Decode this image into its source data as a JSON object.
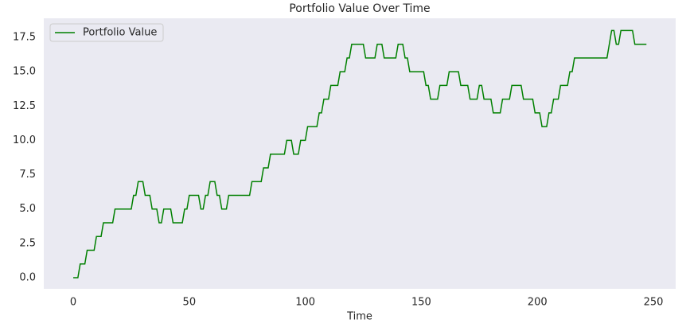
{
  "chart_data": {
    "type": "line",
    "title": "Portfolio Value Over Time",
    "xlabel": "Time",
    "x": [
      0,
      1,
      2,
      3,
      4,
      5,
      6,
      7,
      8,
      9,
      10,
      11,
      12,
      13,
      14,
      15,
      16,
      17,
      18,
      19,
      20,
      21,
      22,
      23,
      24,
      25,
      26,
      27,
      28,
      29,
      30,
      31,
      32,
      33,
      34,
      35,
      36,
      37,
      38,
      39,
      40,
      41,
      42,
      43,
      44,
      45,
      46,
      47,
      48,
      49,
      50,
      51,
      52,
      53,
      54,
      55,
      56,
      57,
      58,
      59,
      60,
      61,
      62,
      63,
      64,
      65,
      66,
      67,
      68,
      69,
      70,
      71,
      72,
      73,
      74,
      75,
      76,
      77,
      78,
      79,
      80,
      81,
      82,
      83,
      84,
      85,
      86,
      87,
      88,
      89,
      90,
      91,
      92,
      93,
      94,
      95,
      96,
      97,
      98,
      99,
      100,
      101,
      102,
      103,
      104,
      105,
      106,
      107,
      108,
      109,
      110,
      111,
      112,
      113,
      114,
      115,
      116,
      117,
      118,
      119,
      120,
      121,
      122,
      123,
      124,
      125,
      126,
      127,
      128,
      129,
      130,
      131,
      132,
      133,
      134,
      135,
      136,
      137,
      138,
      139,
      140,
      141,
      142,
      143,
      144,
      145,
      146,
      147,
      148,
      149,
      150,
      151,
      152,
      153,
      154,
      155,
      156,
      157,
      158,
      159,
      160,
      161,
      162,
      163,
      164,
      165,
      166,
      167,
      168,
      169,
      170,
      171,
      172,
      173,
      174,
      175,
      176,
      177,
      178,
      179,
      180,
      181,
      182,
      183,
      184,
      185,
      186,
      187,
      188,
      189,
      190,
      191,
      192,
      193,
      194,
      195,
      196,
      197,
      198,
      199,
      200,
      201,
      202,
      203,
      204,
      205,
      206,
      207,
      208,
      209,
      210,
      211,
      212,
      213,
      214,
      215,
      216,
      217,
      218,
      219,
      220,
      221,
      222,
      223,
      224,
      225,
      226,
      227,
      228,
      229,
      230,
      231,
      232,
      233,
      234,
      235,
      236,
      237,
      238,
      239,
      240,
      241,
      242,
      243,
      244,
      245,
      246,
      247
    ],
    "series": [
      {
        "name": "Portfolio Value",
        "color": "#008000",
        "values": [
          0,
          0,
          0,
          1,
          1,
          1,
          2,
          2,
          2,
          2,
          3,
          3,
          3,
          4,
          4,
          4,
          4,
          4,
          5,
          5,
          5,
          5,
          5,
          5,
          5,
          5,
          6,
          6,
          7,
          7,
          7,
          6,
          6,
          6,
          5,
          5,
          5,
          4,
          4,
          5,
          5,
          5,
          5,
          4,
          4,
          4,
          4,
          4,
          5,
          5,
          6,
          6,
          6,
          6,
          6,
          5,
          5,
          6,
          6,
          7,
          7,
          7,
          6,
          6,
          5,
          5,
          5,
          6,
          6,
          6,
          6,
          6,
          6,
          6,
          6,
          6,
          6,
          7,
          7,
          7,
          7,
          7,
          8,
          8,
          8,
          9,
          9,
          9,
          9,
          9,
          9,
          9,
          10,
          10,
          10,
          9,
          9,
          9,
          10,
          10,
          10,
          11,
          11,
          11,
          11,
          11,
          12,
          12,
          13,
          13,
          13,
          14,
          14,
          14,
          14,
          15,
          15,
          15,
          16,
          16,
          17,
          17,
          17,
          17,
          17,
          17,
          16,
          16,
          16,
          16,
          16,
          17,
          17,
          17,
          16,
          16,
          16,
          16,
          16,
          16,
          17,
          17,
          17,
          16,
          16,
          15,
          15,
          15,
          15,
          15,
          15,
          15,
          14,
          14,
          13,
          13,
          13,
          13,
          14,
          14,
          14,
          14,
          15,
          15,
          15,
          15,
          15,
          14,
          14,
          14,
          14,
          13,
          13,
          13,
          13,
          14,
          14,
          13,
          13,
          13,
          13,
          12,
          12,
          12,
          12,
          13,
          13,
          13,
          13,
          14,
          14,
          14,
          14,
          14,
          13,
          13,
          13,
          13,
          13,
          12,
          12,
          12,
          11,
          11,
          11,
          12,
          12,
          13,
          13,
          13,
          14,
          14,
          14,
          14,
          15,
          15,
          16,
          16,
          16,
          16,
          16,
          16,
          16,
          16,
          16,
          16,
          16,
          16,
          16,
          16,
          16,
          17,
          18,
          18,
          17,
          17,
          18,
          18,
          18,
          18,
          18,
          18,
          17,
          17,
          17,
          17,
          17,
          17
        ]
      }
    ],
    "xlim": [
      -12.7,
      259.6
    ],
    "xticks": [
      0,
      50,
      100,
      150,
      200,
      250
    ],
    "ylim": [
      -0.81,
      18.89
    ],
    "yticks": [
      {
        "value": 0,
        "label": "0.0"
      },
      2.5,
      {
        "value": 5,
        "label": "5.0"
      },
      7.5,
      {
        "value": 10,
        "label": "10.0"
      },
      12.5,
      {
        "value": 15,
        "label": "15.0"
      },
      17.5
    ],
    "grid": false,
    "legend": "upper left"
  }
}
